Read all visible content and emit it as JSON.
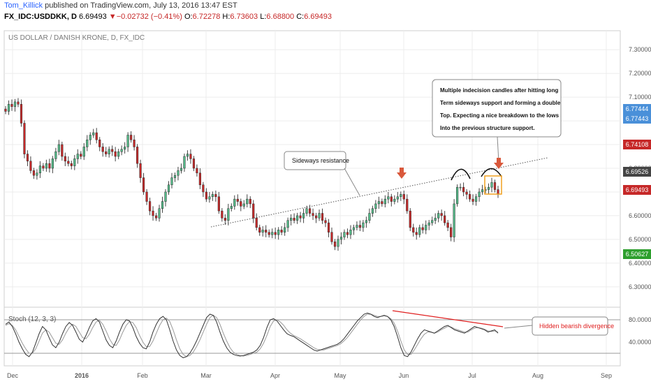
{
  "header": {
    "author": "Tom_Killick",
    "published": " published on TradingView.com, July 13, 2016 13:47 EST",
    "symbol": "FX_IDC:USDDKK, D",
    "last": "6.69493",
    "change": "−0.02732 (−0.41%)",
    "open_label": "O:",
    "open": "6.72278",
    "high_label": "H:",
    "high": "6.73603",
    "low_label": "L:",
    "low": "6.68800",
    "close_label": "C:",
    "close": "6.69493"
  },
  "colors": {
    "up": "#53b987",
    "down": "#c62828",
    "up_badge": "#2e9f2e",
    "blue_badge": "#4a90d9",
    "grid": "#ececec"
  },
  "chart_data": [
    {
      "type": "candlestick",
      "title": "US DOLLAR / DANISH KRONE, D, FX_IDC",
      "ylim": [
        6.22,
        7.38
      ],
      "yticks": [
        "7.30000",
        "7.20000",
        "7.10000",
        "7.00000",
        "6.90000",
        "6.80000",
        "6.70000",
        "6.60000",
        "6.50000",
        "6.40000",
        "6.30000"
      ],
      "xticks": [
        "Dec",
        "2016",
        "Feb",
        "Mar",
        "Apr",
        "May",
        "Jun",
        "Jul",
        "Aug",
        "Sep"
      ],
      "price_badges": [
        {
          "value": "6.77444",
          "color": "#4a90d9"
        },
        {
          "value": "6.77443",
          "color": "#4a90d9"
        },
        {
          "value": "6.74108",
          "color": "#c62828"
        },
        {
          "value": "6.69526",
          "color": "#444444"
        },
        {
          "value": "6.69493",
          "color": "#c62828"
        },
        {
          "value": "6.50627",
          "color": "#2e9f2e"
        }
      ],
      "closes": [
        7.04,
        7.07,
        7.06,
        7.08,
        7.07,
        6.99,
        6.86,
        6.83,
        6.79,
        6.77,
        6.78,
        6.81,
        6.8,
        6.82,
        6.8,
        6.84,
        6.87,
        6.9,
        6.85,
        6.83,
        6.82,
        6.81,
        6.84,
        6.86,
        6.85,
        6.89,
        6.92,
        6.94,
        6.95,
        6.92,
        6.89,
        6.87,
        6.86,
        6.88,
        6.87,
        6.85,
        6.87,
        6.88,
        6.89,
        6.94,
        6.92,
        6.89,
        6.82,
        6.76,
        6.7,
        6.66,
        6.62,
        6.6,
        6.59,
        6.63,
        6.66,
        6.7,
        6.73,
        6.76,
        6.77,
        6.79,
        6.8,
        6.85,
        6.86,
        6.84,
        6.8,
        6.78,
        6.73,
        6.7,
        6.67,
        6.68,
        6.69,
        6.68,
        6.62,
        6.59,
        6.58,
        6.63,
        6.64,
        6.67,
        6.66,
        6.64,
        6.65,
        6.67,
        6.65,
        6.59,
        6.55,
        6.53,
        6.54,
        6.53,
        6.52,
        6.53,
        6.52,
        6.54,
        6.53,
        6.55,
        6.58,
        6.59,
        6.58,
        6.6,
        6.59,
        6.61,
        6.63,
        6.61,
        6.6,
        6.59,
        6.61,
        6.58,
        6.57,
        6.53,
        6.49,
        6.47,
        6.5,
        6.51,
        6.53,
        6.52,
        6.54,
        6.55,
        6.56,
        6.55,
        6.57,
        6.58,
        6.61,
        6.63,
        6.65,
        6.66,
        6.65,
        6.67,
        6.68,
        6.66,
        6.67,
        6.68,
        6.69,
        6.67,
        6.62,
        6.55,
        6.53,
        6.52,
        6.55,
        6.54,
        6.56,
        6.57,
        6.58,
        6.59,
        6.61,
        6.6,
        6.57,
        6.55,
        6.51,
        6.65,
        6.72,
        6.72,
        6.7,
        6.69,
        6.67,
        6.66,
        6.68,
        6.7,
        6.71,
        6.71,
        6.72,
        6.74,
        6.71,
        6.69
      ],
      "resistance_line": {
        "label": "Sideways resistance",
        "from": [
          0.0,
          6.56
        ],
        "to": [
          1.0,
          6.815
        ]
      },
      "annotations": [
        {
          "text": [
            "Multiple indecision candles after hitting long",
            "Term sideways support and forming a double",
            "Top. Expecting a nice breakdown to the lows",
            "Into the previous structure support."
          ]
        }
      ]
    },
    {
      "type": "line",
      "title": "Stoch (12, 3, 3)",
      "ylim": [
        0,
        100
      ],
      "yticks": [
        "80.0000",
        "40.0000"
      ],
      "levels": [
        80,
        20
      ],
      "annotation": "Hidden bearish divergence",
      "k": [
        72,
        76,
        68,
        55,
        40,
        28,
        18,
        14,
        22,
        38,
        55,
        68,
        62,
        48,
        35,
        30,
        40,
        55,
        68,
        75,
        70,
        58,
        45,
        40,
        52,
        66,
        78,
        82,
        76,
        60,
        44,
        34,
        30,
        42,
        58,
        72,
        80,
        78,
        66,
        50,
        38,
        30,
        28,
        40,
        58,
        72,
        82,
        86,
        80,
        62,
        42,
        26,
        16,
        12,
        14,
        20,
        30,
        42,
        56,
        70,
        84,
        90,
        88,
        76,
        58,
        42,
        30,
        22,
        18,
        16,
        15,
        16,
        18,
        20,
        22,
        26,
        34,
        48,
        66,
        80,
        82,
        78,
        70,
        62,
        55,
        52,
        50,
        46,
        42,
        38,
        34,
        30,
        26,
        24,
        26,
        28,
        30,
        32,
        34,
        36,
        40,
        46,
        54,
        62,
        70,
        78,
        84,
        90,
        92,
        90,
        86,
        84,
        86,
        88,
        86,
        80,
        68,
        50,
        30,
        16,
        14,
        22,
        34,
        46,
        56,
        62,
        60,
        58,
        56,
        60,
        64,
        68,
        70,
        66,
        62,
        60,
        58,
        56,
        60,
        64,
        68,
        66,
        64,
        62,
        58,
        60,
        62,
        56
      ],
      "d": [
        70,
        73,
        70,
        62,
        50,
        38,
        28,
        20,
        20,
        28,
        42,
        56,
        62,
        58,
        48,
        38,
        36,
        44,
        56,
        66,
        72,
        68,
        58,
        48,
        46,
        54,
        66,
        76,
        79,
        72,
        60,
        46,
        36,
        34,
        44,
        58,
        70,
        77,
        75,
        66,
        52,
        40,
        32,
        32,
        42,
        56,
        70,
        80,
        83,
        77,
        62,
        44,
        28,
        18,
        14,
        16,
        22,
        32,
        44,
        58,
        72,
        84,
        88,
        84,
        72,
        56,
        42,
        30,
        22,
        18,
        16,
        15,
        16,
        18,
        20,
        22,
        28,
        38,
        52,
        68,
        78,
        80,
        76,
        70,
        62,
        56,
        52,
        49,
        46,
        42,
        38,
        34,
        30,
        27,
        26,
        26,
        28,
        30,
        32,
        34,
        37,
        42,
        48,
        56,
        64,
        72,
        80,
        86,
        90,
        90,
        88,
        86,
        86,
        87,
        86,
        82,
        74,
        60,
        42,
        26,
        18,
        18,
        26,
        36,
        46,
        54,
        58,
        58,
        56,
        58,
        62,
        65,
        68,
        67,
        64,
        62,
        60,
        58,
        58,
        62,
        65,
        66,
        65,
        63,
        60,
        59,
        60,
        58
      ],
      "divergence_line": {
        "from": [
          0.747,
          88
        ],
        "to": [
          0.97,
          68
        ]
      }
    }
  ]
}
